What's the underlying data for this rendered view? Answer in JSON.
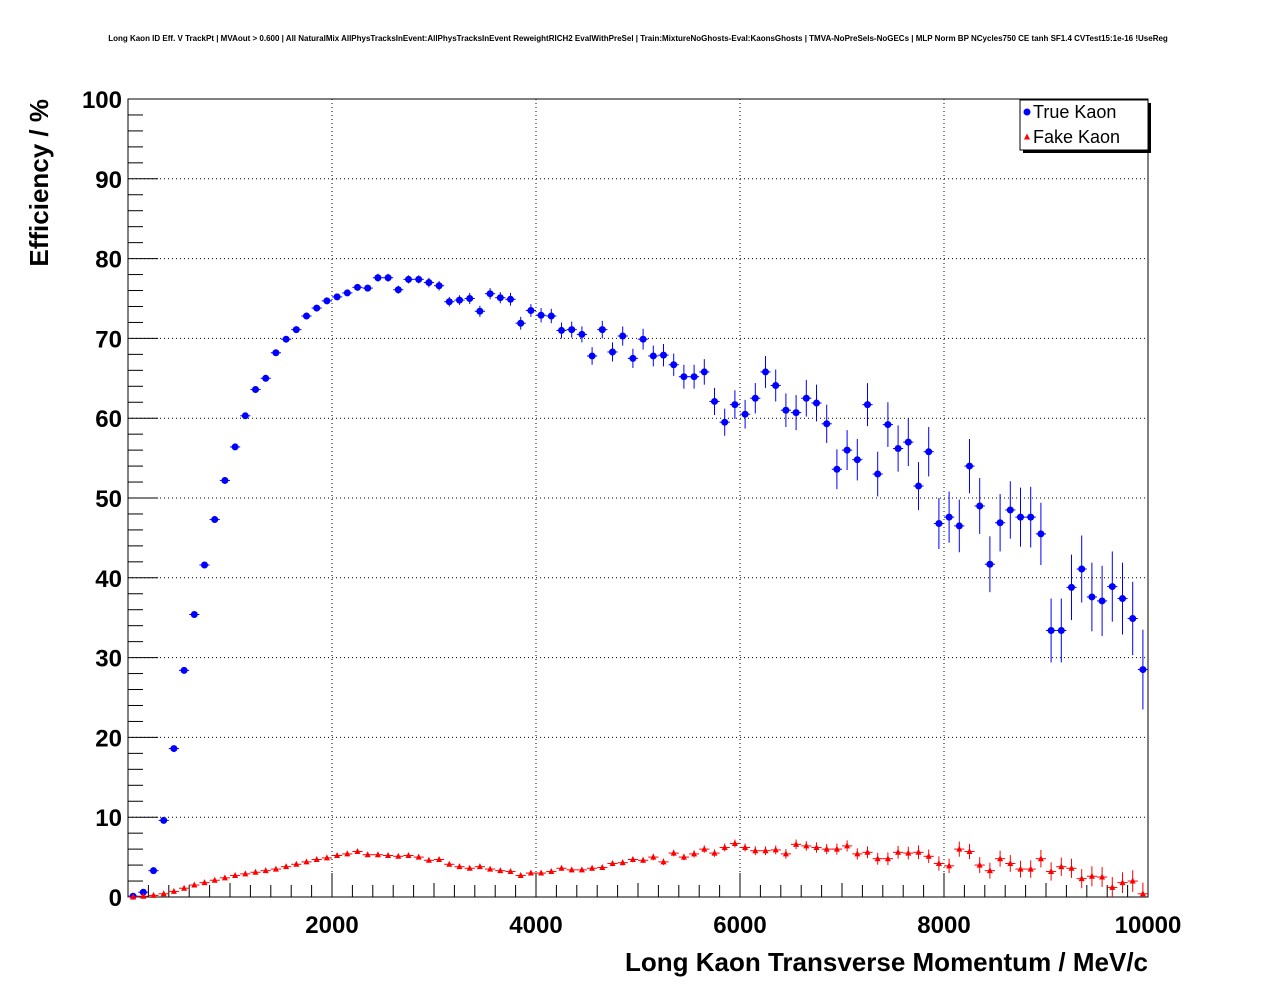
{
  "chart_data": {
    "type": "scatter",
    "title": "Long Kaon ID Eff. V TrackPt | MVAout > 0.600 | All NaturalMix AllPhysTracksInEvent:AllPhysTracksInEvent ReweightRICH2 EvalWithPreSel | Train:MixtureNoGhosts-Eval:KaonsGhosts | TMVA-NoPreSels-NoGECs | MLP Norm BP NCycles750 CE tanh SF1.4 CVTest15:1e-16 !UseReg",
    "xlabel": "Long Kaon Transverse Momentum / MeV/c",
    "ylabel": "Efficiency / %",
    "xlim": [
      0,
      10000
    ],
    "ylim": [
      0,
      100
    ],
    "xticks": [
      "2000",
      "4000",
      "6000",
      "8000",
      "10000"
    ],
    "yticks": [
      "0",
      "10",
      "20",
      "30",
      "40",
      "50",
      "60",
      "70",
      "80",
      "90",
      "100"
    ],
    "grid": true,
    "legend_position": "top-right",
    "x_bin_width": 100,
    "series": [
      {
        "name": "True Kaon",
        "color": "#0000ff",
        "marker": "circle",
        "x": [
          50,
          150,
          250,
          350,
          450,
          550,
          650,
          750,
          850,
          950,
          1050,
          1150,
          1250,
          1350,
          1450,
          1550,
          1650,
          1750,
          1850,
          1950,
          2050,
          2150,
          2250,
          2350,
          2450,
          2550,
          2650,
          2750,
          2850,
          2950,
          3050,
          3150,
          3250,
          3350,
          3450,
          3550,
          3650,
          3750,
          3850,
          3950,
          4050,
          4150,
          4250,
          4350,
          4450,
          4550,
          4650,
          4750,
          4850,
          4950,
          5050,
          5150,
          5250,
          5350,
          5450,
          5550,
          5650,
          5750,
          5850,
          5950,
          6050,
          6150,
          6250,
          6350,
          6450,
          6550,
          6650,
          6750,
          6850,
          6950,
          7050,
          7150,
          7250,
          7350,
          7450,
          7550,
          7650,
          7750,
          7850,
          7950,
          8050,
          8150,
          8250,
          8350,
          8450,
          8550,
          8650,
          8750,
          8850,
          8950,
          9050,
          9150,
          9250,
          9350,
          9450,
          9550,
          9650,
          9750,
          9850,
          9950
        ],
        "y": [
          0.1,
          0.6,
          3.3,
          9.6,
          18.6,
          28.4,
          35.4,
          41.6,
          47.3,
          52.2,
          56.4,
          60.3,
          63.6,
          65.0,
          68.2,
          69.9,
          71.1,
          72.8,
          73.8,
          74.7,
          75.2,
          75.7,
          76.4,
          76.3,
          77.6,
          77.6,
          76.1,
          77.4,
          77.4,
          77.0,
          76.6,
          74.6,
          74.8,
          75.0,
          73.4,
          75.6,
          75.1,
          74.9,
          71.9,
          73.5,
          72.9,
          72.8,
          71.0,
          71.1,
          70.5,
          67.8,
          71.1,
          68.3,
          70.3,
          67.5,
          69.9,
          67.8,
          67.9,
          66.7,
          65.2,
          65.2,
          65.8,
          62.1,
          59.5,
          61.7,
          60.5,
          62.5,
          65.8,
          64.1,
          61.0,
          60.7,
          62.5,
          61.9,
          59.3,
          53.6,
          56.0,
          54.8,
          61.7,
          53.0,
          59.2,
          56.2,
          57.0,
          51.5,
          55.8,
          46.8,
          47.6,
          46.5,
          54.0,
          49.0,
          41.7,
          46.9,
          48.5,
          47.6,
          47.6,
          45.5,
          33.4,
          33.4,
          38.8,
          41.1,
          37.6,
          37.1,
          38.9,
          37.4,
          34.9,
          28.5
        ],
        "err": [
          0.05,
          0.1,
          0.2,
          0.3,
          0.4,
          0.4,
          0.4,
          0.4,
          0.4,
          0.4,
          0.4,
          0.4,
          0.4,
          0.4,
          0.4,
          0.4,
          0.4,
          0.4,
          0.4,
          0.4,
          0.4,
          0.4,
          0.4,
          0.4,
          0.5,
          0.5,
          0.5,
          0.5,
          0.5,
          0.6,
          0.6,
          0.6,
          0.6,
          0.7,
          0.7,
          0.7,
          0.7,
          0.8,
          0.8,
          0.8,
          0.9,
          0.9,
          1.0,
          1.0,
          1.0,
          1.1,
          1.1,
          1.2,
          1.2,
          1.2,
          1.3,
          1.3,
          1.4,
          1.4,
          1.5,
          1.5,
          1.6,
          1.7,
          1.7,
          1.8,
          1.8,
          1.9,
          2.0,
          2.0,
          2.1,
          2.2,
          2.3,
          2.3,
          2.4,
          2.5,
          2.5,
          2.6,
          2.7,
          2.8,
          2.8,
          2.9,
          3.0,
          3.0,
          3.1,
          3.2,
          3.2,
          3.3,
          3.4,
          3.5,
          3.5,
          3.6,
          3.6,
          3.7,
          3.8,
          3.9,
          4.0,
          4.0,
          4.1,
          4.2,
          4.3,
          4.4,
          4.4,
          4.5,
          4.6,
          5.0
        ]
      },
      {
        "name": "Fake Kaon",
        "color": "#ff0000",
        "marker": "triangle",
        "x": [
          50,
          150,
          250,
          350,
          450,
          550,
          650,
          750,
          850,
          950,
          1050,
          1150,
          1250,
          1350,
          1450,
          1550,
          1650,
          1750,
          1850,
          1950,
          2050,
          2150,
          2250,
          2350,
          2450,
          2550,
          2650,
          2750,
          2850,
          2950,
          3050,
          3150,
          3250,
          3350,
          3450,
          3550,
          3650,
          3750,
          3850,
          3950,
          4050,
          4150,
          4250,
          4350,
          4450,
          4550,
          4650,
          4750,
          4850,
          4950,
          5050,
          5150,
          5250,
          5350,
          5450,
          5550,
          5650,
          5750,
          5850,
          5950,
          6050,
          6150,
          6250,
          6350,
          6450,
          6550,
          6650,
          6750,
          6850,
          6950,
          7050,
          7150,
          7250,
          7350,
          7450,
          7550,
          7650,
          7750,
          7850,
          7950,
          8050,
          8150,
          8250,
          8350,
          8450,
          8550,
          8650,
          8750,
          8850,
          8950,
          9050,
          9150,
          9250,
          9350,
          9450,
          9550,
          9650,
          9750,
          9850,
          9950
        ],
        "y": [
          0.0,
          0.1,
          0.2,
          0.4,
          0.7,
          1.1,
          1.5,
          1.8,
          2.1,
          2.4,
          2.7,
          2.9,
          3.1,
          3.3,
          3.5,
          3.8,
          4.1,
          4.4,
          4.7,
          4.9,
          5.2,
          5.4,
          5.7,
          5.3,
          5.3,
          5.2,
          5.1,
          5.2,
          5.0,
          4.6,
          4.7,
          4.1,
          3.8,
          3.6,
          3.8,
          3.5,
          3.3,
          3.2,
          2.7,
          3.0,
          3.0,
          3.2,
          3.6,
          3.4,
          3.4,
          3.6,
          3.7,
          4.2,
          4.3,
          4.7,
          4.6,
          5.0,
          4.4,
          5.5,
          5.0,
          5.4,
          6.0,
          5.5,
          6.2,
          6.7,
          6.2,
          5.8,
          5.8,
          5.9,
          5.4,
          6.6,
          6.4,
          6.2,
          6.0,
          6.0,
          6.4,
          5.4,
          5.6,
          4.8,
          4.8,
          5.6,
          5.5,
          5.6,
          5.1,
          4.2,
          3.9,
          6.0,
          5.7,
          4.0,
          3.3,
          4.8,
          4.2,
          3.5,
          3.5,
          4.8,
          3.2,
          3.8,
          3.6,
          2.3,
          2.6,
          2.5,
          1.2,
          1.8,
          2.0,
          0.4
        ],
        "err": [
          0.02,
          0.05,
          0.1,
          0.1,
          0.1,
          0.1,
          0.1,
          0.1,
          0.1,
          0.1,
          0.1,
          0.1,
          0.1,
          0.1,
          0.1,
          0.1,
          0.1,
          0.1,
          0.1,
          0.1,
          0.15,
          0.15,
          0.15,
          0.15,
          0.15,
          0.2,
          0.2,
          0.2,
          0.2,
          0.2,
          0.2,
          0.2,
          0.2,
          0.2,
          0.2,
          0.2,
          0.25,
          0.25,
          0.25,
          0.25,
          0.25,
          0.3,
          0.3,
          0.3,
          0.3,
          0.3,
          0.3,
          0.35,
          0.35,
          0.35,
          0.35,
          0.4,
          0.4,
          0.4,
          0.4,
          0.45,
          0.45,
          0.45,
          0.5,
          0.5,
          0.5,
          0.55,
          0.55,
          0.55,
          0.6,
          0.6,
          0.6,
          0.65,
          0.65,
          0.7,
          0.7,
          0.7,
          0.75,
          0.75,
          0.8,
          0.8,
          0.8,
          0.85,
          0.85,
          0.9,
          0.9,
          0.95,
          0.95,
          1.0,
          1.0,
          1.0,
          1.05,
          1.05,
          1.1,
          1.1,
          1.15,
          1.15,
          1.2,
          1.2,
          1.25,
          1.25,
          1.3,
          1.3,
          1.35,
          1.4
        ]
      }
    ]
  }
}
